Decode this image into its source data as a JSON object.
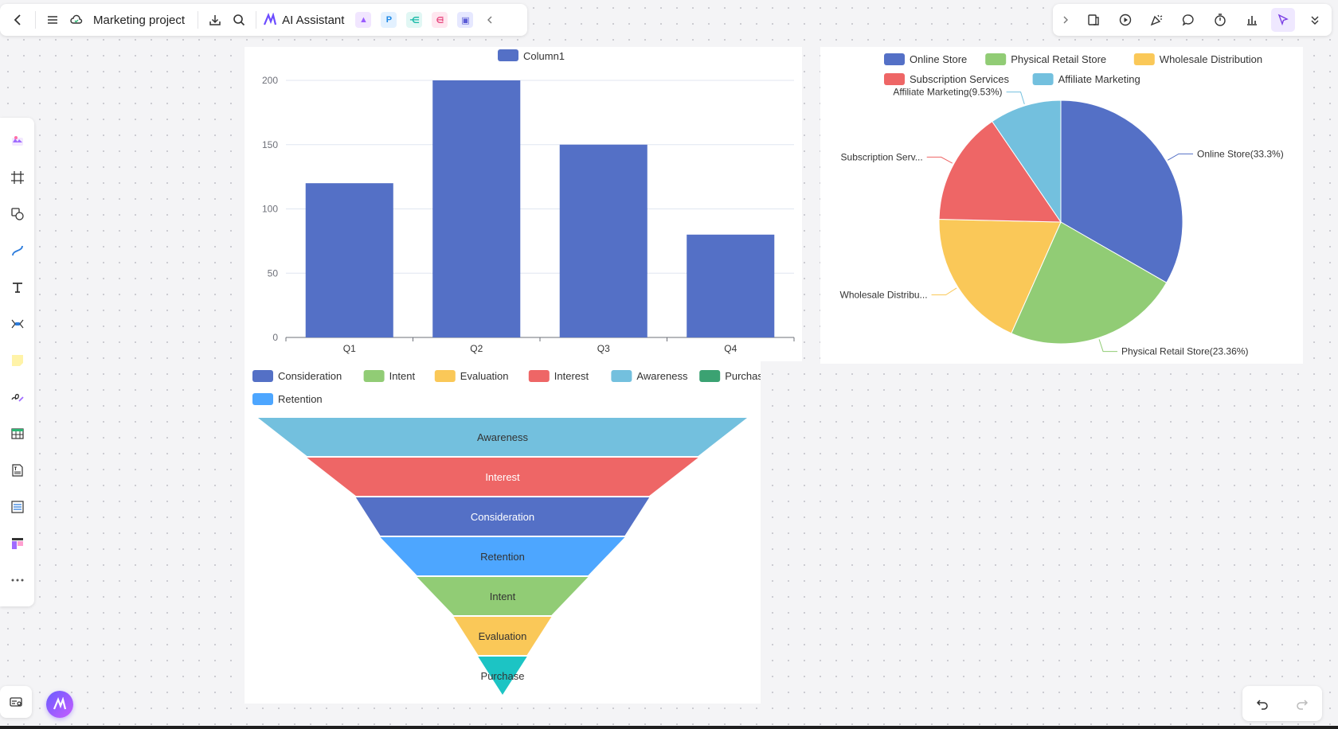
{
  "topbar": {
    "project_name": "Marketing project",
    "ai_assistant_label": "AI Assistant"
  },
  "bar_chart": {
    "chart_data": {
      "type": "bar",
      "categories": [
        "Q1",
        "Q2",
        "Q3",
        "Q4"
      ],
      "series": [
        {
          "name": "Column1",
          "values": [
            120,
            200,
            150,
            80
          ]
        }
      ],
      "ylim": [
        0,
        200
      ],
      "yticks": [
        0,
        50,
        100,
        150,
        200
      ],
      "color": "#5470c6",
      "legend_position": "top-center",
      "grid": true
    }
  },
  "pie_chart": {
    "chart_data": {
      "type": "pie",
      "legend": [
        "Online Store",
        "Physical Retail Store",
        "Wholesale Distribution",
        "Subscription Services",
        "Affiliate Marketing"
      ],
      "slices": [
        {
          "name": "Online Store",
          "value": 33.3,
          "label": "Online Store(33.3%)",
          "color": "#5470c6"
        },
        {
          "name": "Physical Retail Store",
          "value": 23.36,
          "label": "Physical Retail Store(23.36%)",
          "color": "#91cc75"
        },
        {
          "name": "Wholesale Distribution",
          "value": 18.7,
          "label": "Wholesale Distribu...",
          "color": "#fac858"
        },
        {
          "name": "Subscription Services",
          "value": 15.11,
          "label": "Subscription Serv...",
          "color": "#ee6666"
        },
        {
          "name": "Affiliate Marketing",
          "value": 9.53,
          "label": "Affiliate Marketing(9.53%)",
          "color": "#73c0de"
        }
      ],
      "legend_position": "top"
    }
  },
  "funnel_chart": {
    "chart_data": {
      "type": "funnel",
      "legend": [
        {
          "name": "Consideration",
          "color": "#5470c6"
        },
        {
          "name": "Intent",
          "color": "#91cc75"
        },
        {
          "name": "Evaluation",
          "color": "#fac858"
        },
        {
          "name": "Interest",
          "color": "#ee6666"
        },
        {
          "name": "Awareness",
          "color": "#73c0de"
        },
        {
          "name": "Purchase",
          "color": "#3ba272"
        },
        {
          "name": "Retention",
          "color": "#4da6ff"
        }
      ],
      "stages": [
        {
          "name": "Awareness",
          "value": 100,
          "color": "#73c0de"
        },
        {
          "name": "Interest",
          "value": 80,
          "color": "#ee6666"
        },
        {
          "name": "Consideration",
          "value": 60,
          "color": "#5470c6"
        },
        {
          "name": "Retention",
          "value": 50,
          "color": "#4da6ff"
        },
        {
          "name": "Intent",
          "value": 35,
          "color": "#91cc75"
        },
        {
          "name": "Evaluation",
          "value": 20,
          "color": "#fac858"
        },
        {
          "name": "Purchase",
          "value": 10,
          "color": "#1cc4c4"
        }
      ]
    }
  },
  "icons": {
    "top_left": [
      "back-icon",
      "menu-icon",
      "cloud-sync-icon",
      "download-icon",
      "search-icon",
      "ai-logo-icon",
      "image-app-icon",
      "p-app-icon",
      "mindmap-app-icon",
      "flow-app-icon",
      "chat-app-icon",
      "collapse-icon"
    ],
    "top_right": [
      "expand-icon",
      "template-icon",
      "play-icon",
      "celebrate-icon",
      "comment-icon",
      "timer-icon",
      "chart-icon",
      "select-icon",
      "more-icon"
    ],
    "left": [
      "templates-icon",
      "frame-icon",
      "shape-icon",
      "connector-icon",
      "text-icon",
      "mindmap-icon",
      "sticky-note-icon",
      "pen-icon",
      "table-icon",
      "text-box-icon",
      "list-icon",
      "layout-icon",
      "more-tools-icon"
    ]
  }
}
